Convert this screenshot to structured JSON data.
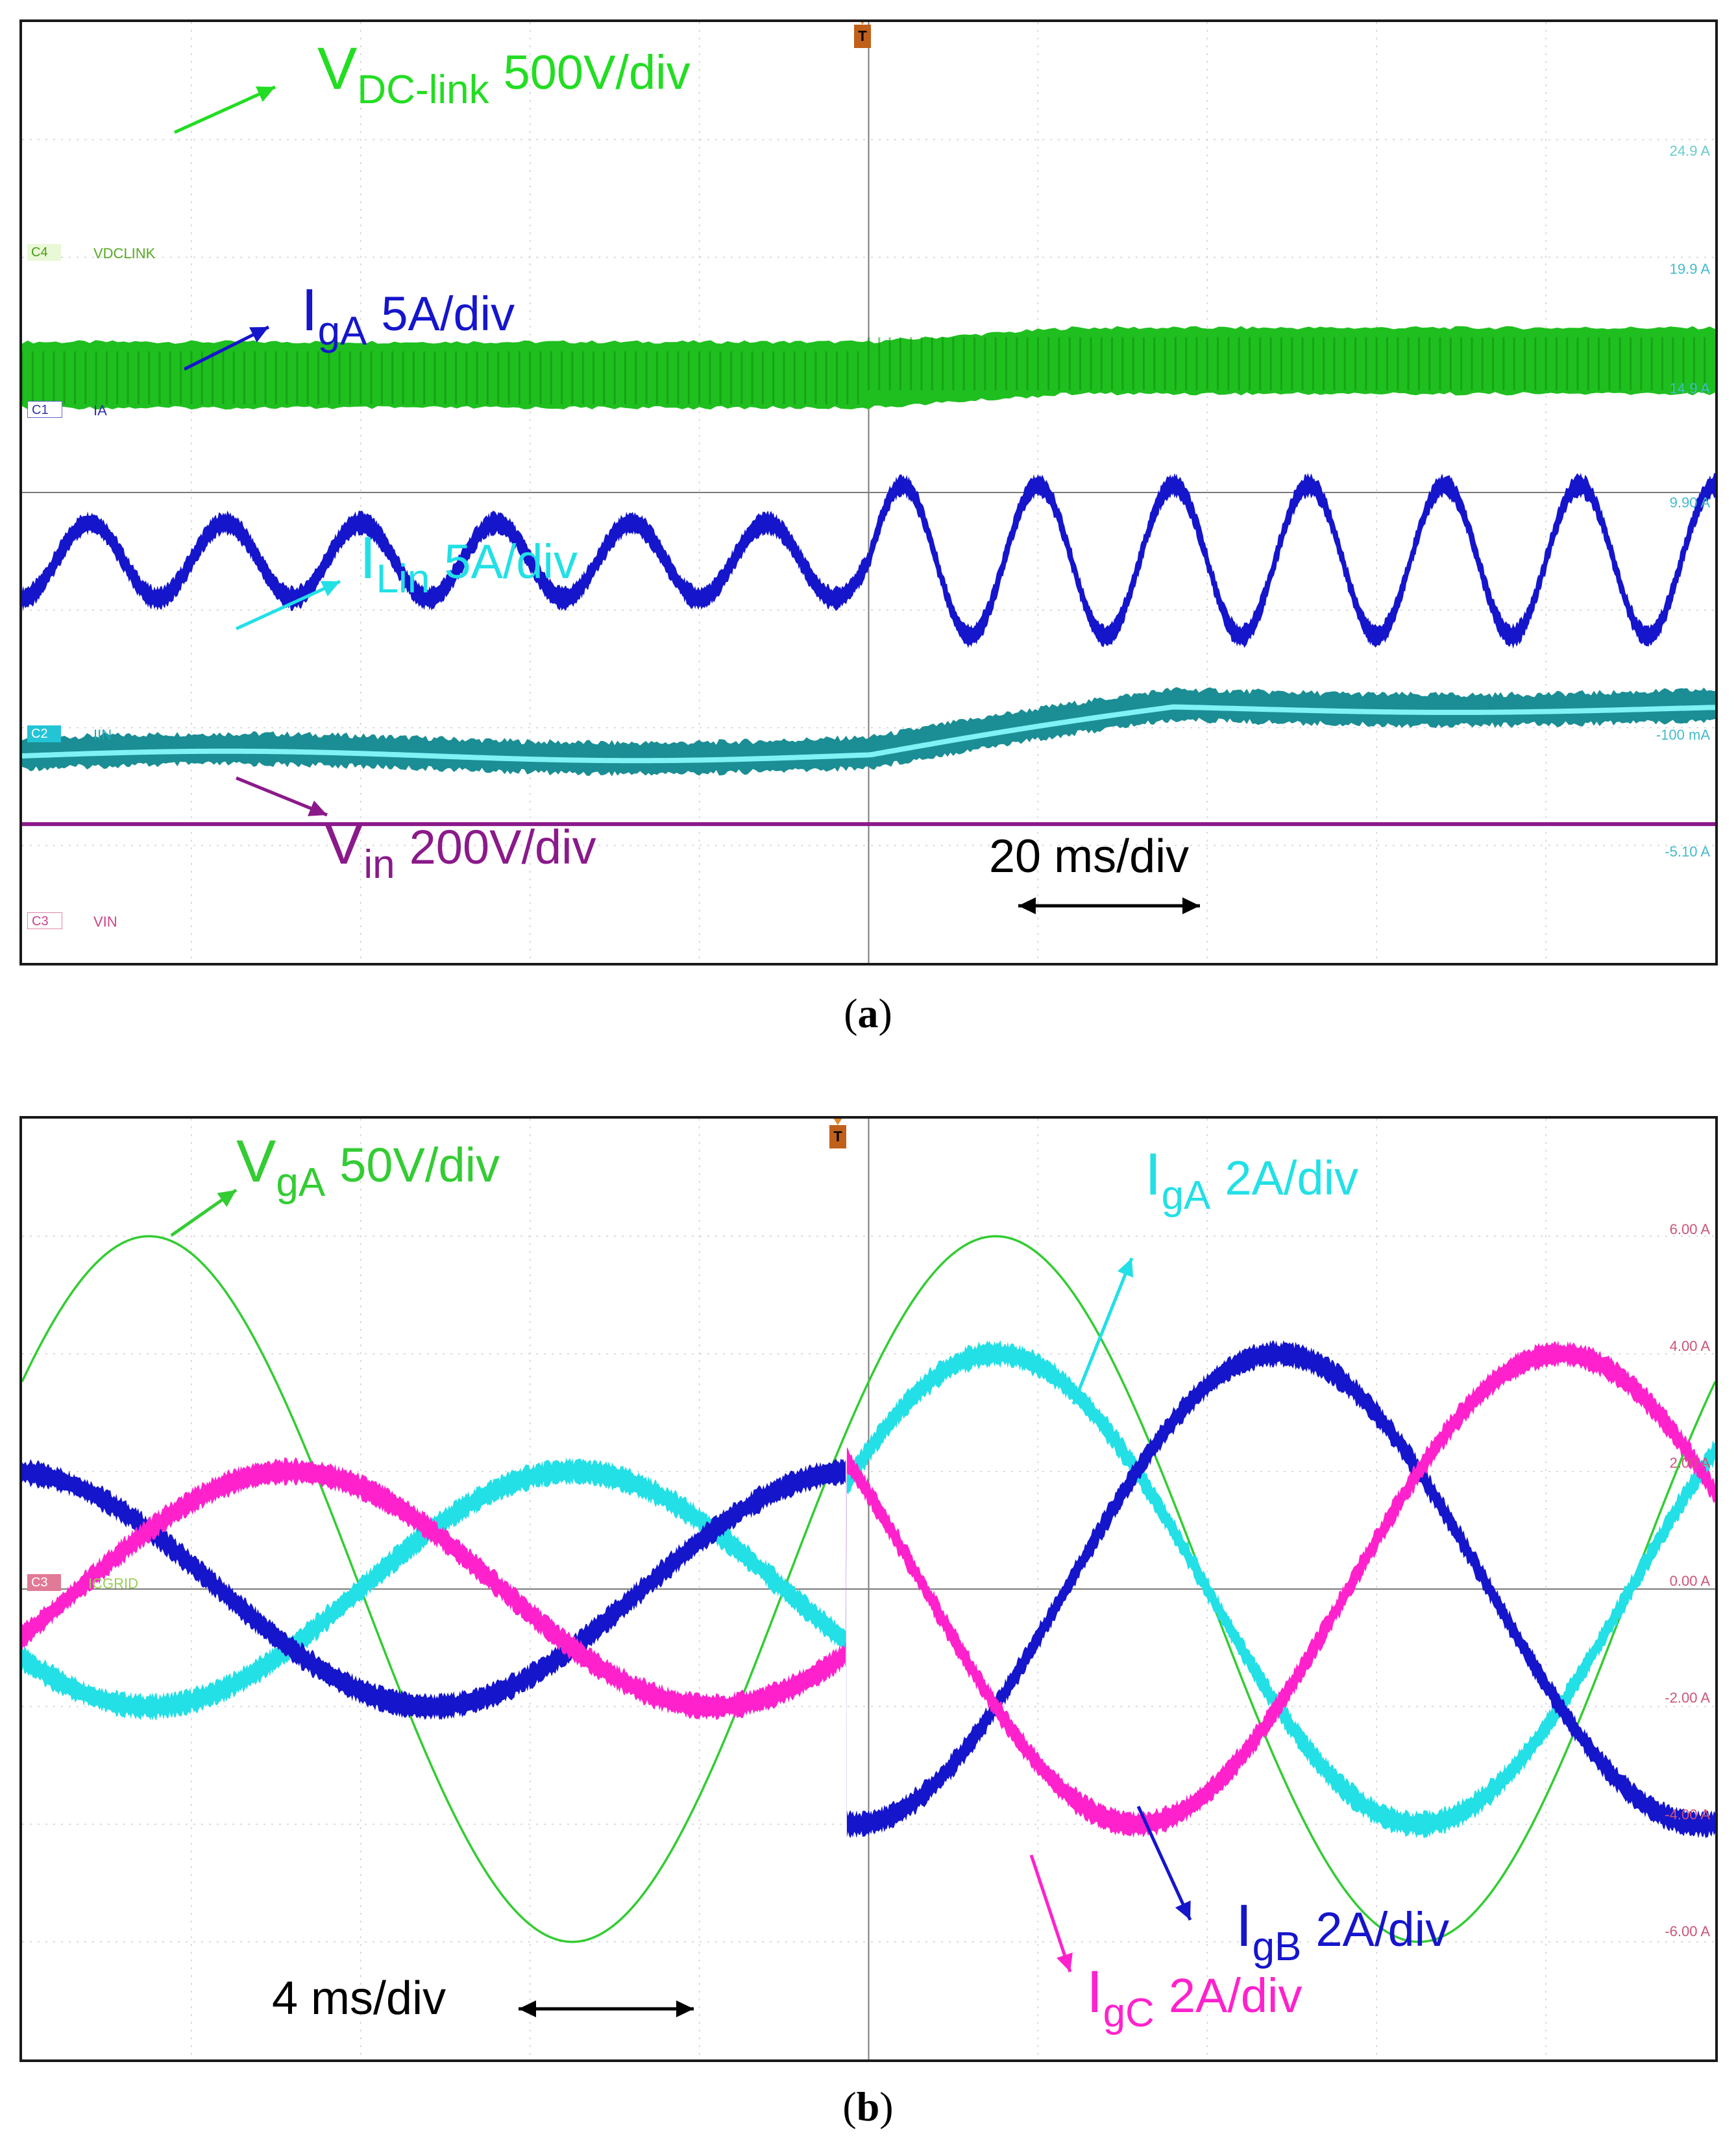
{
  "panel_a": {
    "caption": "a",
    "labels": {
      "vdc": {
        "main": "V",
        "sub": "DC-link",
        "scale": "500V/div",
        "color": "#22dd22"
      },
      "iga": {
        "main": "I",
        "sub": "gA",
        "scale": "5A/div",
        "color": "#1515cc"
      },
      "ilin": {
        "main": "I",
        "sub": "Lin",
        "scale": "5A/div",
        "color": "#22e0e6"
      },
      "vin": {
        "main": "V",
        "sub": "in",
        "scale": "200V/div",
        "color": "#8a1a8a"
      }
    },
    "timebase": "20 ms/div",
    "channel_tags": {
      "c4": "C4",
      "c4_name": "VDCLINK",
      "c1": "C1",
      "c1_name": "IA",
      "c2": "C2",
      "c2_name": "IIN",
      "c3": "C3",
      "c3_name": "VIN"
    },
    "scale_readouts": [
      "24.9 A",
      "19.9 A",
      "14.9 A",
      "9.90 A",
      "-100 mA",
      "-5.10 A"
    ],
    "trigger_marker": "T"
  },
  "panel_b": {
    "caption": "b",
    "labels": {
      "vga": {
        "main": "V",
        "sub": "gA",
        "scale": "50V/div",
        "color": "#33cc33"
      },
      "iga": {
        "main": "I",
        "sub": "gA",
        "scale": "2A/div",
        "color": "#22e0e6"
      },
      "igb": {
        "main": "I",
        "sub": "gB",
        "scale": "2A/div",
        "color": "#1515cc"
      },
      "igc": {
        "main": "I",
        "sub": "gC",
        "scale": "2A/div",
        "color": "#ff22cc"
      }
    },
    "timebase": "4 ms/div",
    "channel_tags": {
      "c3": "C3",
      "c3_name": "ICGRID"
    },
    "scale_readouts": [
      "6.00 A",
      "4.00 A",
      "2.00 A",
      "0.00 A",
      "-2.00 A",
      "-4.00 A",
      "-6.00 A"
    ],
    "trigger_marker": "T"
  },
  "chart_data": [
    {
      "type": "line",
      "title": "",
      "xlabel": "time (20 ms/div)",
      "divisions": {
        "x": 10,
        "y": 8
      },
      "transient_at_div": 5,
      "series": [
        {
          "name": "VDC-link",
          "scale": "500V/div",
          "color": "#22dd22",
          "center_div_before": 5.0,
          "center_div_after": 5.12,
          "band_div": 0.56
        },
        {
          "name": "IgA",
          "scale": "5A/div",
          "color": "#1515cc",
          "center_div": 3.42,
          "amplitude_div_before": 0.32,
          "amplitude_div_after": 0.64,
          "cycles_per_div": 1.25
        },
        {
          "name": "ILin",
          "scale": "5A/div",
          "color": "#22e0e6",
          "center_div_before": 1.78,
          "center_div_after": 2.18,
          "band_div": 0.26
        },
        {
          "name": "Vin",
          "scale": "200V/div",
          "color": "#8a1a8a",
          "level_div": 1.18
        }
      ]
    },
    {
      "type": "line",
      "title": "",
      "xlabel": "time (4 ms/div)",
      "divisions": {
        "x": 10,
        "y": 8
      },
      "transient_at_div": 4.87,
      "frequency_cycles_per_div": 0.2,
      "series": [
        {
          "name": "VgA",
          "scale": "50V/div",
          "color": "#33cc33",
          "amplitude": 6.0,
          "peak_at_div": 0.75
        },
        {
          "name": "IgA",
          "scale": "2A/div",
          "color": "#22e0e6",
          "amplitude_before": 2.0,
          "amplitude_after": 4.0
        },
        {
          "name": "IgB",
          "scale": "2A/div",
          "color": "#1515cc",
          "amplitude_before": 2.0,
          "amplitude_after": 4.0
        },
        {
          "name": "IgC",
          "scale": "2A/div",
          "color": "#ff22cc",
          "amplitude_before": 2.0,
          "amplitude_after": 4.0
        }
      ],
      "y_ticks": [
        6.0,
        4.0,
        2.0,
        0.0,
        -2.0,
        -4.0,
        -6.0
      ],
      "y_unit": "A"
    }
  ]
}
